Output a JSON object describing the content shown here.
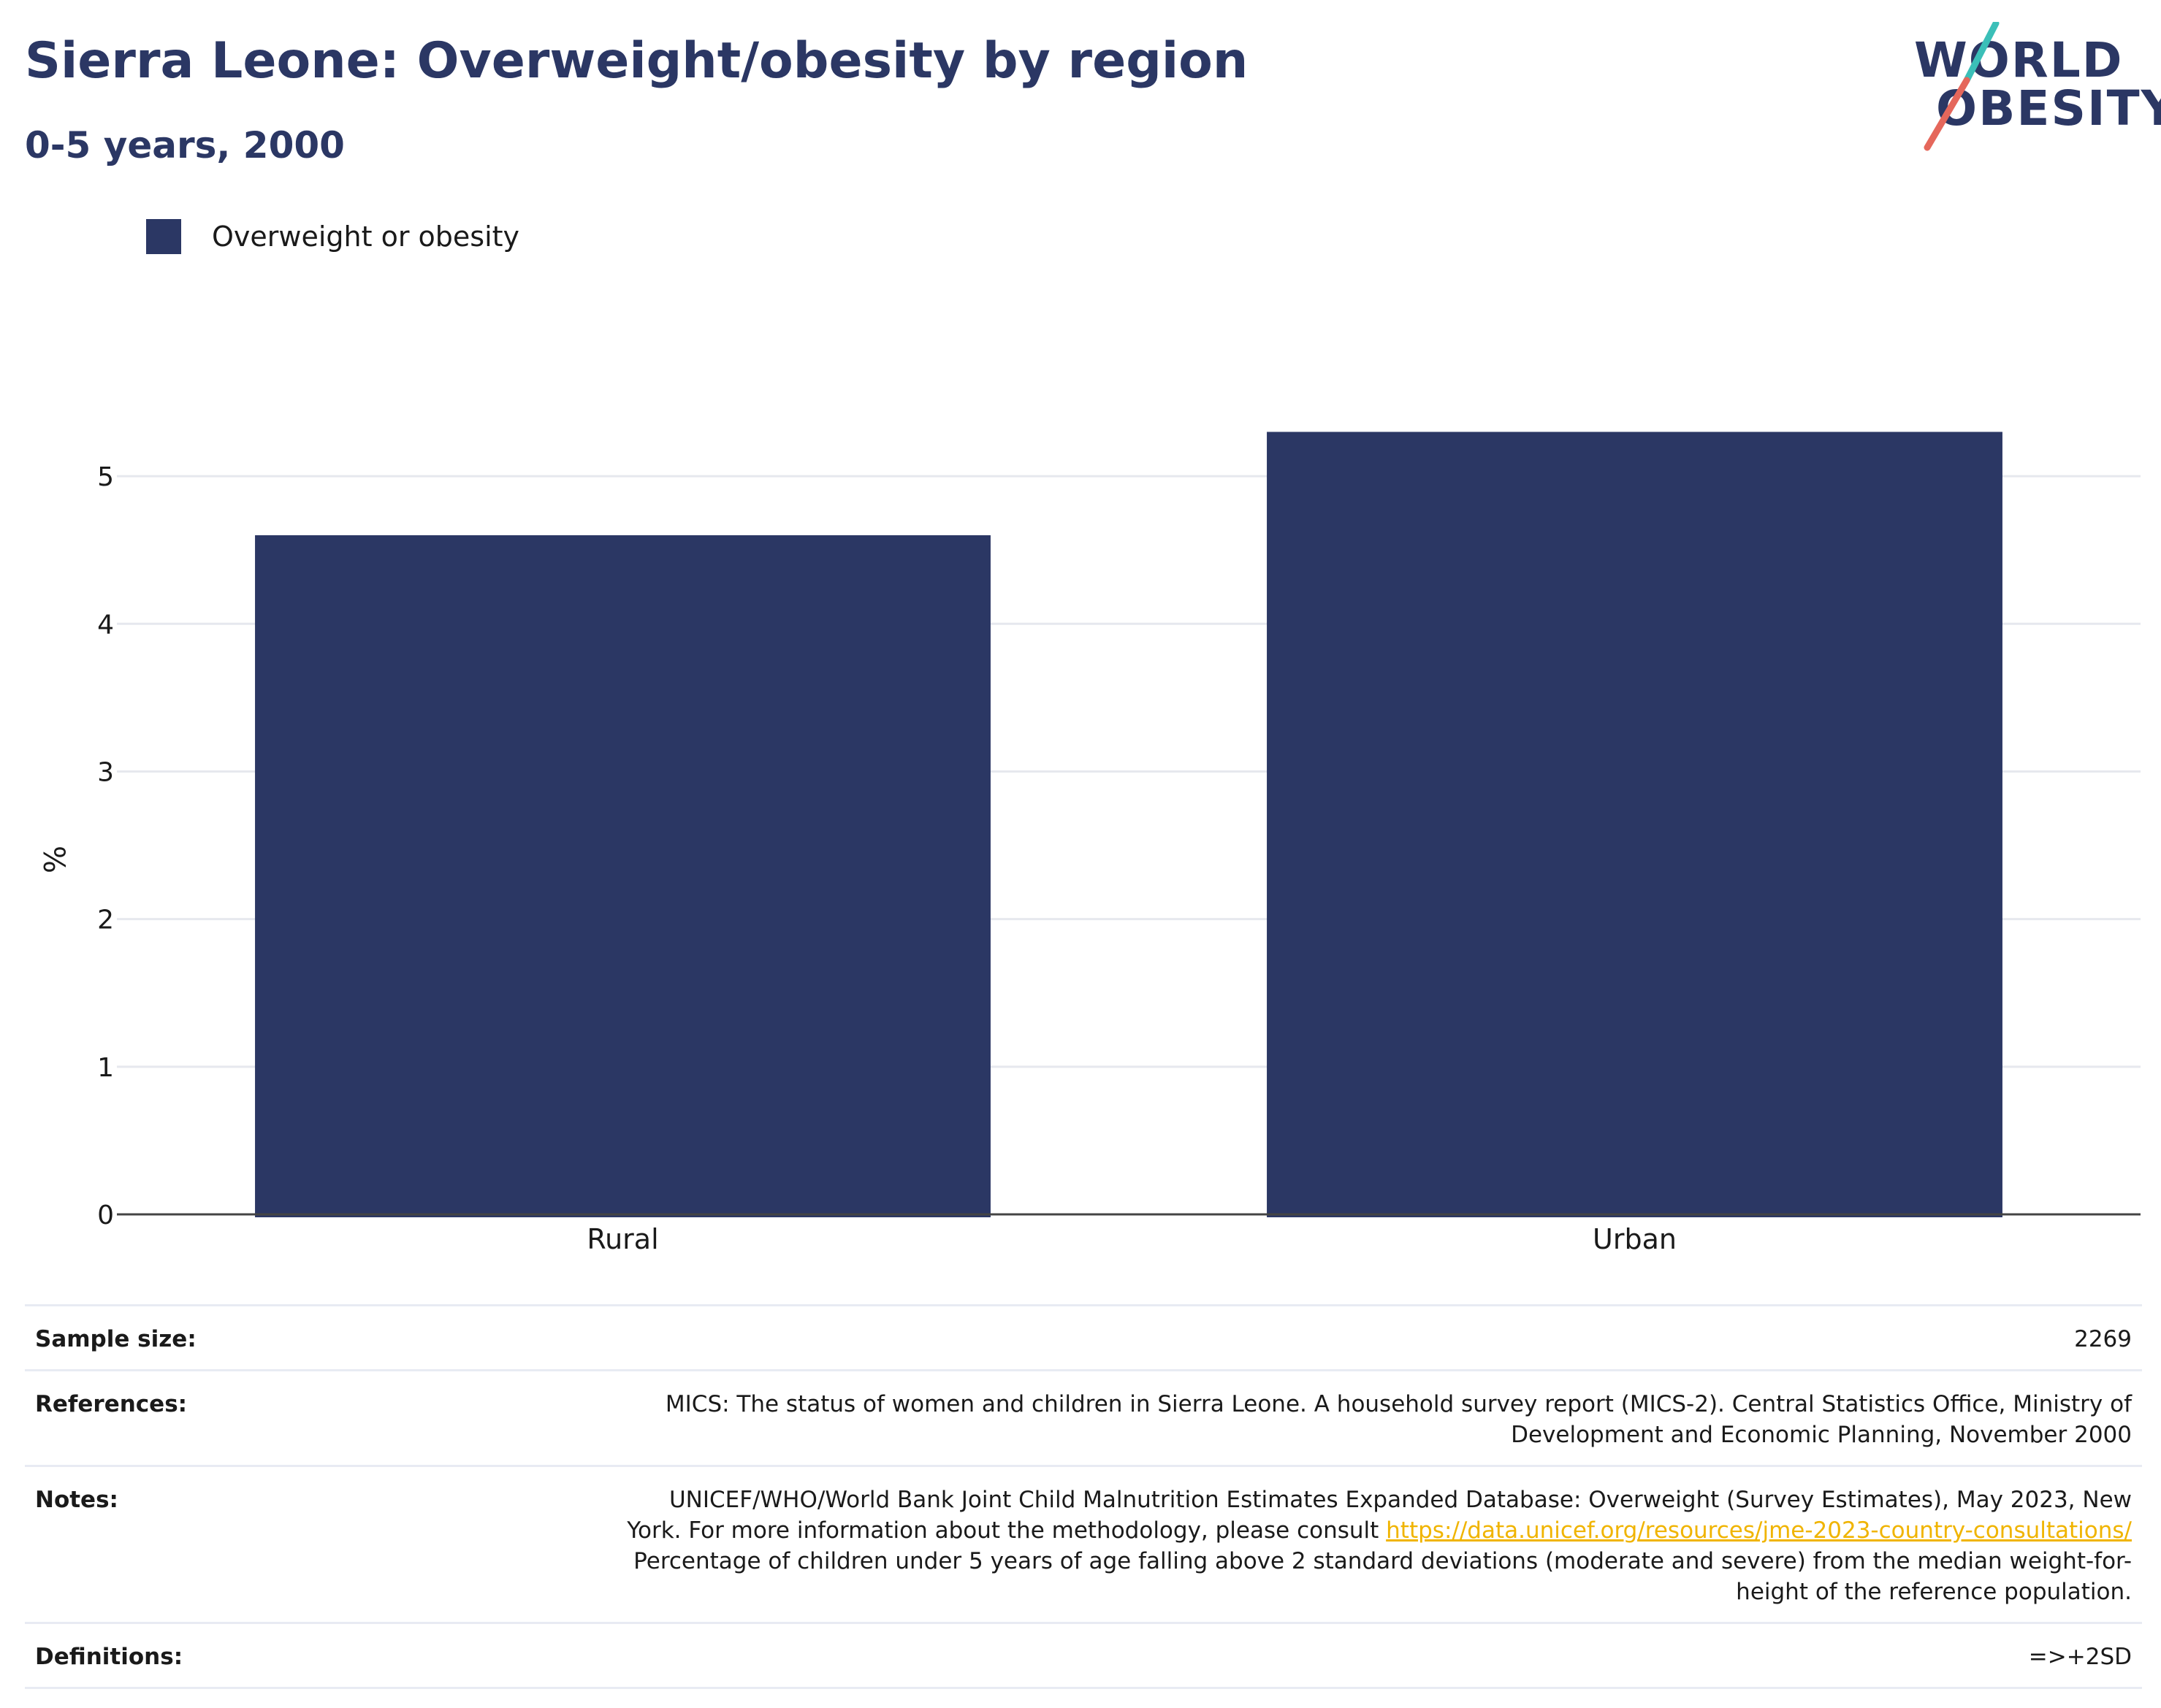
{
  "header": {
    "title": "Sierra Leone: Overweight/obesity by region",
    "subtitle": "0-5 years, 2000"
  },
  "logo": {
    "line1": "WORLD",
    "line2": "OBESITY",
    "colors": {
      "text": "#2b3764",
      "slash_top": "#3bbfb8",
      "slash_bottom": "#e5675b"
    }
  },
  "legend": {
    "items": [
      {
        "label": "Overweight or obesity",
        "color": "#2b3764"
      }
    ]
  },
  "chart_data": {
    "type": "bar",
    "categories": [
      "Rural",
      "Urban"
    ],
    "series": [
      {
        "name": "Overweight or obesity",
        "values": [
          4.6,
          5.3
        ],
        "color": "#2b3764"
      }
    ],
    "xlabel": "",
    "ylabel": "%",
    "ylim": [
      0,
      5.5
    ],
    "yticks": [
      0,
      1,
      2,
      3,
      4,
      5
    ],
    "grid": true,
    "legend_position": "top-left"
  },
  "info": {
    "sample_size_label": "Sample size:",
    "sample_size_value": "2269",
    "references_label": "References:",
    "references_line1": "MICS: The status of women and children in Sierra Leone. A household survey report (MICS-2). Central Statistics Office, Ministry of",
    "references_line2": "Development and Economic Planning, November 2000",
    "notes_label": "Notes:",
    "notes_line1": "UNICEF/WHO/World Bank Joint Child Malnutrition Estimates Expanded Database: Overweight (Survey Estimates), May 2023, New",
    "notes_line2_pre": "York. For more information about the methodology, please consult ",
    "notes_link": "https://data.unicef.org/resources/jme-2023-country-consultations/",
    "notes_line3": "Percentage of children under 5 years of age falling above 2 standard deviations (moderate and severe) from the median weight-for-",
    "notes_line4": "height of the reference population.",
    "definitions_label": "Definitions:",
    "definitions_value": "=>+2SD"
  }
}
